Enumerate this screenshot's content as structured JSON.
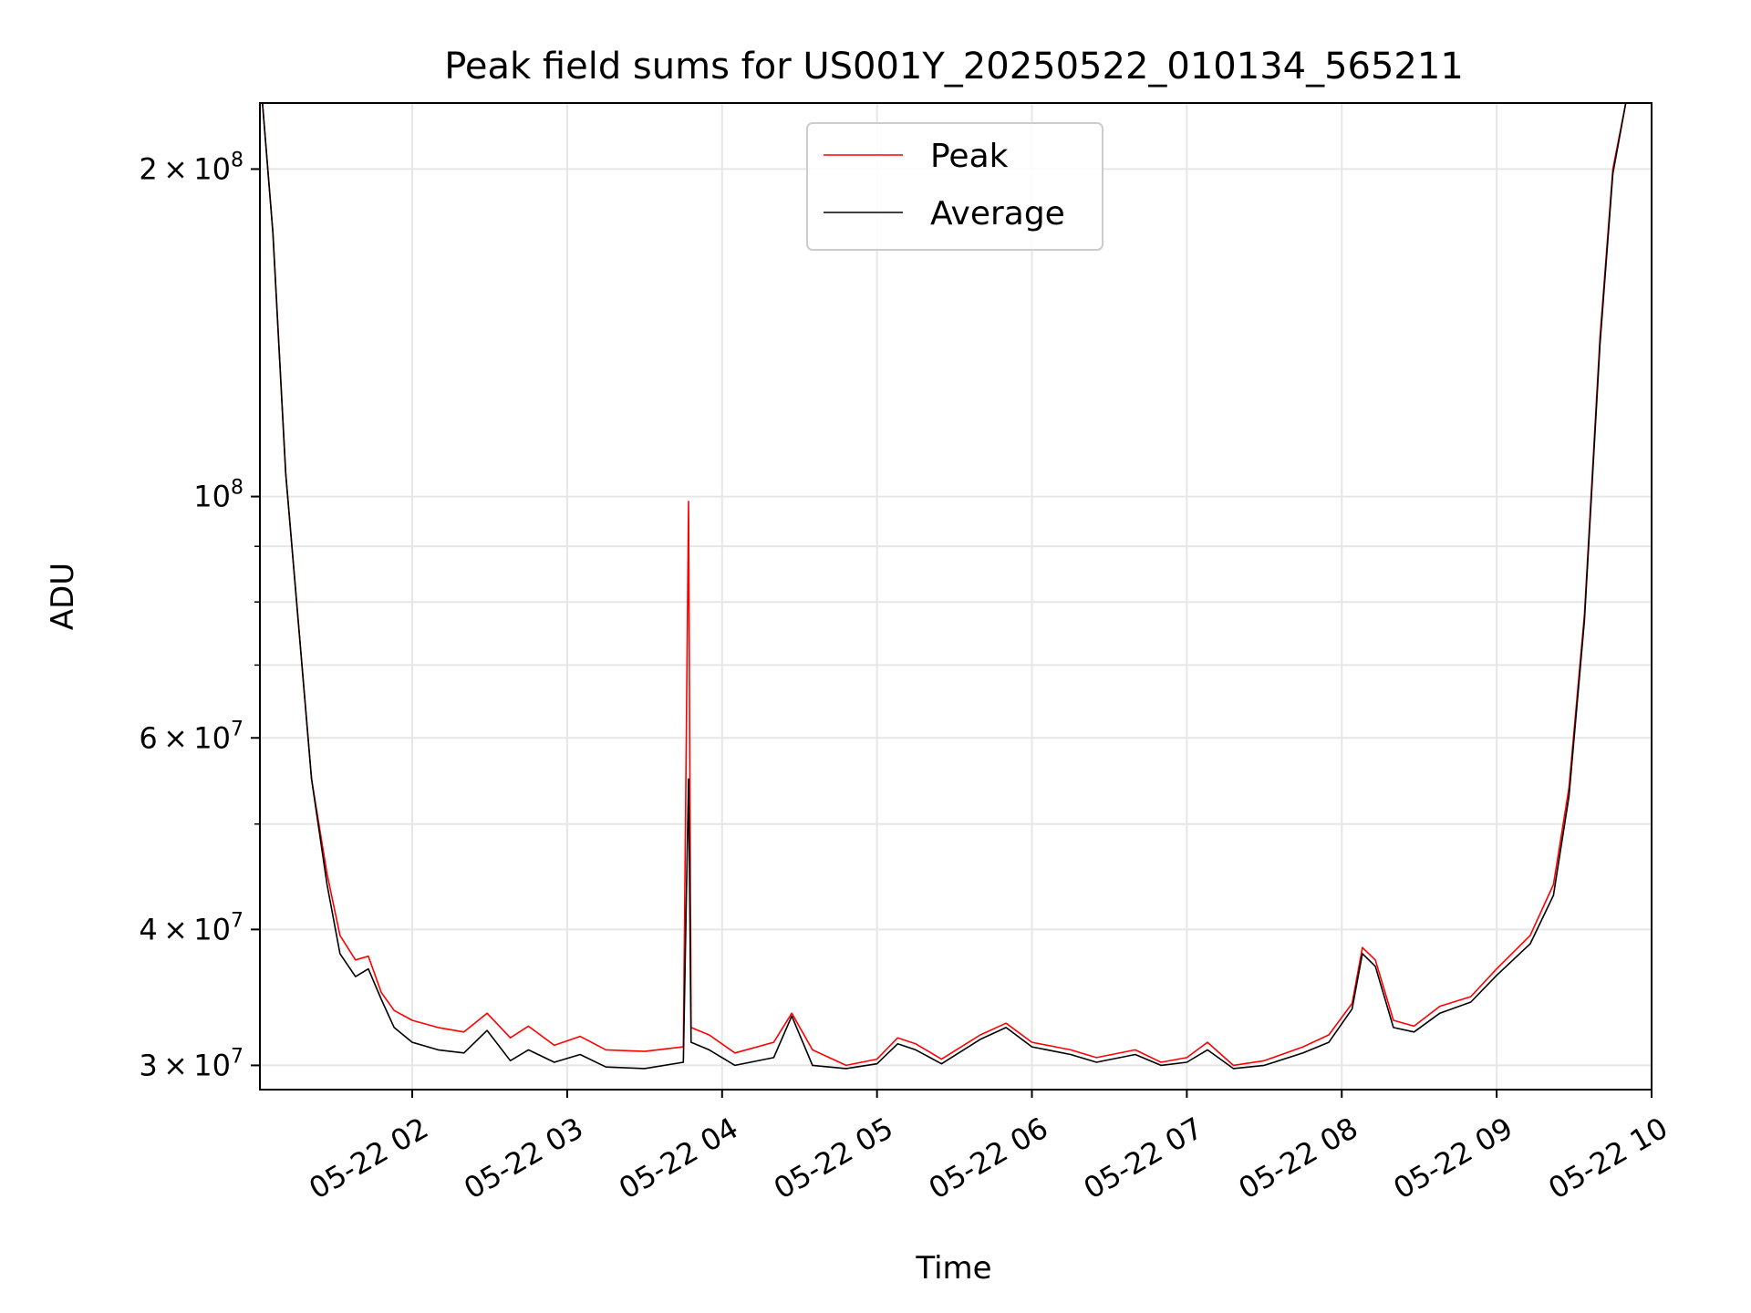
{
  "chart_data": {
    "type": "line",
    "title": "Peak field sums for US001Y_20250522_010134_565211",
    "xlabel": "Time",
    "ylabel": "ADU",
    "yscale": "log",
    "xlim": [
      "2025-05-22 01:01",
      "2025-05-22 10:00"
    ],
    "ylim": [
      28500000,
      230000000
    ],
    "x_tick_labels": [
      "05-22 02",
      "05-22 03",
      "05-22 04",
      "05-22 05",
      "05-22 06",
      "05-22 07",
      "05-22 08",
      "05-22 09",
      "05-22 10"
    ],
    "y_ticks": [
      {
        "value": 30000000,
        "mantissa": "3",
        "exp": "7"
      },
      {
        "value": 40000000,
        "mantissa": "4",
        "exp": "7"
      },
      {
        "value": 60000000,
        "mantissa": "6",
        "exp": "7"
      },
      {
        "value": 100000000,
        "mantissa": "",
        "exp": "8"
      },
      {
        "value": 200000000,
        "mantissa": "2",
        "exp": "8"
      }
    ],
    "grid": true,
    "legend_position": "top-center",
    "series": [
      {
        "name": "Peak",
        "color": "#ff0000",
        "points": [
          [
            "2025-05-22 01:02",
            230000000
          ],
          [
            "2025-05-22 01:06",
            175000000
          ],
          [
            "2025-05-22 01:11",
            105000000
          ],
          [
            "2025-05-22 01:16",
            76000000
          ],
          [
            "2025-05-22 01:21",
            55000000
          ],
          [
            "2025-05-22 01:27",
            45000000
          ],
          [
            "2025-05-22 01:32",
            39500000
          ],
          [
            "2025-05-22 01:38",
            37500000
          ],
          [
            "2025-05-22 01:43",
            37800000
          ],
          [
            "2025-05-22 01:48",
            35000000
          ],
          [
            "2025-05-22 01:53",
            33700000
          ],
          [
            "2025-05-22 02:00",
            33000000
          ],
          [
            "2025-05-22 02:10",
            32500000
          ],
          [
            "2025-05-22 02:20",
            32200000
          ],
          [
            "2025-05-22 02:29",
            33500000
          ],
          [
            "2025-05-22 02:38",
            31800000
          ],
          [
            "2025-05-22 02:45",
            32600000
          ],
          [
            "2025-05-22 02:55",
            31300000
          ],
          [
            "2025-05-22 03:05",
            31900000
          ],
          [
            "2025-05-22 03:15",
            31000000
          ],
          [
            "2025-05-22 03:30",
            30900000
          ],
          [
            "2025-05-22 03:45",
            31200000
          ],
          [
            "2025-05-22 03:47",
            99000000
          ],
          [
            "2025-05-22 03:48",
            32500000
          ],
          [
            "2025-05-22 03:55",
            32000000
          ],
          [
            "2025-05-22 04:05",
            30800000
          ],
          [
            "2025-05-22 04:20",
            31500000
          ],
          [
            "2025-05-22 04:27",
            33500000
          ],
          [
            "2025-05-22 04:35",
            31000000
          ],
          [
            "2025-05-22 04:48",
            30000000
          ],
          [
            "2025-05-22 05:00",
            30400000
          ],
          [
            "2025-05-22 05:08",
            31800000
          ],
          [
            "2025-05-22 05:15",
            31400000
          ],
          [
            "2025-05-22 05:25",
            30400000
          ],
          [
            "2025-05-22 05:40",
            32000000
          ],
          [
            "2025-05-22 05:50",
            32800000
          ],
          [
            "2025-05-22 06:00",
            31500000
          ],
          [
            "2025-05-22 06:15",
            31000000
          ],
          [
            "2025-05-22 06:25",
            30500000
          ],
          [
            "2025-05-22 06:40",
            31000000
          ],
          [
            "2025-05-22 06:50",
            30200000
          ],
          [
            "2025-05-22 07:00",
            30500000
          ],
          [
            "2025-05-22 07:08",
            31500000
          ],
          [
            "2025-05-22 07:18",
            30000000
          ],
          [
            "2025-05-22 07:30",
            30300000
          ],
          [
            "2025-05-22 07:45",
            31200000
          ],
          [
            "2025-05-22 07:55",
            32000000
          ],
          [
            "2025-05-22 08:04",
            34200000
          ],
          [
            "2025-05-22 08:08",
            38500000
          ],
          [
            "2025-05-22 08:13",
            37500000
          ],
          [
            "2025-05-22 08:20",
            33000000
          ],
          [
            "2025-05-22 08:28",
            32600000
          ],
          [
            "2025-05-22 08:38",
            34000000
          ],
          [
            "2025-05-22 08:50",
            34700000
          ],
          [
            "2025-05-22 09:00",
            36800000
          ],
          [
            "2025-05-22 09:13",
            39500000
          ],
          [
            "2025-05-22 09:22",
            44000000
          ],
          [
            "2025-05-22 09:28",
            54000000
          ],
          [
            "2025-05-22 09:34",
            78000000
          ],
          [
            "2025-05-22 09:40",
            140000000
          ],
          [
            "2025-05-22 09:45",
            200000000
          ],
          [
            "2025-05-22 09:50",
            230000000
          ]
        ]
      },
      {
        "name": "Average",
        "color": "#000000",
        "points": [
          [
            "2025-05-22 01:02",
            230000000
          ],
          [
            "2025-05-22 01:06",
            175000000
          ],
          [
            "2025-05-22 01:11",
            105000000
          ],
          [
            "2025-05-22 01:16",
            76000000
          ],
          [
            "2025-05-22 01:21",
            55000000
          ],
          [
            "2025-05-22 01:27",
            44000000
          ],
          [
            "2025-05-22 01:32",
            38000000
          ],
          [
            "2025-05-22 01:38",
            36200000
          ],
          [
            "2025-05-22 01:43",
            36800000
          ],
          [
            "2025-05-22 01:48",
            34500000
          ],
          [
            "2025-05-22 01:53",
            32500000
          ],
          [
            "2025-05-22 02:00",
            31500000
          ],
          [
            "2025-05-22 02:10",
            31000000
          ],
          [
            "2025-05-22 02:20",
            30800000
          ],
          [
            "2025-05-22 02:29",
            32300000
          ],
          [
            "2025-05-22 02:38",
            30300000
          ],
          [
            "2025-05-22 02:45",
            31000000
          ],
          [
            "2025-05-22 02:55",
            30200000
          ],
          [
            "2025-05-22 03:05",
            30700000
          ],
          [
            "2025-05-22 03:15",
            29900000
          ],
          [
            "2025-05-22 03:30",
            29800000
          ],
          [
            "2025-05-22 03:45",
            30200000
          ],
          [
            "2025-05-22 03:47",
            55000000
          ],
          [
            "2025-05-22 03:48",
            31500000
          ],
          [
            "2025-05-22 03:55",
            31000000
          ],
          [
            "2025-05-22 04:05",
            30000000
          ],
          [
            "2025-05-22 04:20",
            30500000
          ],
          [
            "2025-05-22 04:27",
            33300000
          ],
          [
            "2025-05-22 04:35",
            30000000
          ],
          [
            "2025-05-22 04:48",
            29800000
          ],
          [
            "2025-05-22 05:00",
            30100000
          ],
          [
            "2025-05-22 05:08",
            31400000
          ],
          [
            "2025-05-22 05:15",
            31000000
          ],
          [
            "2025-05-22 05:25",
            30100000
          ],
          [
            "2025-05-22 05:40",
            31700000
          ],
          [
            "2025-05-22 05:50",
            32500000
          ],
          [
            "2025-05-22 06:00",
            31200000
          ],
          [
            "2025-05-22 06:15",
            30700000
          ],
          [
            "2025-05-22 06:25",
            30200000
          ],
          [
            "2025-05-22 06:40",
            30700000
          ],
          [
            "2025-05-22 06:50",
            30000000
          ],
          [
            "2025-05-22 07:00",
            30200000
          ],
          [
            "2025-05-22 07:08",
            31000000
          ],
          [
            "2025-05-22 07:18",
            29800000
          ],
          [
            "2025-05-22 07:30",
            30000000
          ],
          [
            "2025-05-22 07:45",
            30800000
          ],
          [
            "2025-05-22 07:55",
            31500000
          ],
          [
            "2025-05-22 08:04",
            33800000
          ],
          [
            "2025-05-22 08:08",
            38000000
          ],
          [
            "2025-05-22 08:13",
            37000000
          ],
          [
            "2025-05-22 08:20",
            32500000
          ],
          [
            "2025-05-22 08:28",
            32200000
          ],
          [
            "2025-05-22 08:38",
            33500000
          ],
          [
            "2025-05-22 08:50",
            34300000
          ],
          [
            "2025-05-22 09:00",
            36300000
          ],
          [
            "2025-05-22 09:13",
            38800000
          ],
          [
            "2025-05-22 09:22",
            43000000
          ],
          [
            "2025-05-22 09:28",
            53000000
          ],
          [
            "2025-05-22 09:34",
            77000000
          ],
          [
            "2025-05-22 09:40",
            138000000
          ],
          [
            "2025-05-22 09:45",
            198000000
          ],
          [
            "2025-05-22 09:50",
            230000000
          ]
        ]
      }
    ]
  }
}
